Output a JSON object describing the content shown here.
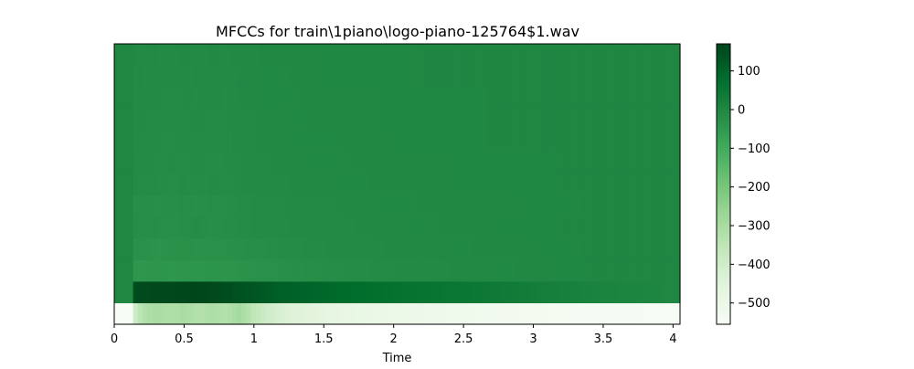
{
  "chart_data": {
    "type": "heatmap",
    "title": "MFCCs for train\\1piano\\logo-piano-125764$1.wav",
    "xlabel": "Time",
    "ylabel": "",
    "xlim": [
      0,
      4.05
    ],
    "x_ticks": [
      "0",
      "0.5",
      "1",
      "1.5",
      "2",
      "2.5",
      "3",
      "3.5",
      "4"
    ],
    "x_tick_values": [
      0,
      0.5,
      1,
      1.5,
      2,
      2.5,
      3,
      3.5,
      4
    ],
    "colormap": "Greens",
    "colorbar": {
      "vmin": -555,
      "vmax": 170,
      "ticks": [
        "100",
        "0",
        "−100",
        "−200",
        "−300",
        "−400",
        "−500"
      ],
      "tick_values": [
        100,
        0,
        -100,
        -200,
        -300,
        -400,
        -500
      ]
    },
    "n_coefficients": 13,
    "signal_onset_time": 0.13,
    "time_points": [
      0,
      0.13,
      0.2,
      0.3,
      0.4,
      0.5,
      0.6,
      0.7,
      0.8,
      0.9,
      1.0,
      1.2,
      1.5,
      2.0,
      2.5,
      3.0,
      3.5,
      4.05
    ],
    "coefficients": [
      {
        "index": 0,
        "values": [
          -555,
          -420,
          -330,
          -300,
          -320,
          -300,
          -330,
          -310,
          -330,
          -290,
          -360,
          -430,
          -470,
          -500,
          -520,
          -535,
          -545,
          -550
        ]
      },
      {
        "index": 1,
        "values": [
          0,
          150,
          155,
          160,
          160,
          165,
          165,
          160,
          150,
          140,
          130,
          110,
          90,
          65,
          50,
          30,
          10,
          0
        ]
      },
      {
        "index": 2,
        "values": [
          0,
          -40,
          -45,
          -40,
          -45,
          -40,
          -42,
          -38,
          -40,
          -35,
          -30,
          -25,
          -18,
          -10,
          -6,
          -3,
          0,
          0
        ]
      },
      {
        "index": 3,
        "values": [
          0,
          -30,
          -25,
          -35,
          -30,
          -25,
          -30,
          -25,
          -28,
          -22,
          -20,
          -15,
          -10,
          -6,
          -4,
          -2,
          0,
          0
        ]
      },
      {
        "index": 4,
        "values": [
          0,
          -15,
          -20,
          -18,
          -25,
          -20,
          -15,
          -22,
          -18,
          -15,
          -12,
          -10,
          -8,
          -5,
          -3,
          -1,
          0,
          0
        ]
      },
      {
        "index": 5,
        "values": [
          0,
          -20,
          -18,
          -22,
          -20,
          -18,
          -22,
          -18,
          -20,
          -15,
          -12,
          -10,
          -7,
          -4,
          -3,
          -2,
          0,
          0
        ]
      },
      {
        "index": 6,
        "values": [
          0,
          -10,
          -15,
          -12,
          -18,
          -12,
          -15,
          -12,
          -14,
          -10,
          -8,
          -7,
          -5,
          -3,
          -2,
          -1,
          0,
          0
        ]
      },
      {
        "index": 7,
        "values": [
          0,
          -12,
          -10,
          -15,
          -12,
          -14,
          -10,
          -15,
          -12,
          -10,
          -8,
          -6,
          -4,
          -3,
          -2,
          -1,
          0,
          0
        ]
      },
      {
        "index": 8,
        "values": [
          0,
          -8,
          -12,
          -10,
          -15,
          -10,
          -12,
          -10,
          -12,
          -8,
          -7,
          -5,
          -4,
          -2,
          -1,
          0,
          0,
          0
        ]
      },
      {
        "index": 9,
        "values": [
          0,
          -10,
          -8,
          -12,
          -10,
          -12,
          -8,
          -12,
          -10,
          -8,
          -6,
          -5,
          -3,
          -2,
          -1,
          0,
          0,
          0
        ]
      },
      {
        "index": 10,
        "values": [
          0,
          -6,
          -10,
          -8,
          -12,
          -8,
          -10,
          -8,
          -10,
          -6,
          -5,
          -4,
          -3,
          -2,
          -1,
          0,
          0,
          0
        ]
      },
      {
        "index": 11,
        "values": [
          0,
          -8,
          -6,
          -10,
          -8,
          -10,
          -6,
          -10,
          -8,
          -6,
          -5,
          -4,
          -2,
          -1,
          0,
          0,
          0,
          0
        ]
      },
      {
        "index": 12,
        "values": [
          0,
          -5,
          -8,
          -6,
          -10,
          -6,
          -8,
          -6,
          -8,
          -5,
          -4,
          -3,
          -2,
          -1,
          0,
          0,
          0,
          0
        ]
      }
    ]
  }
}
